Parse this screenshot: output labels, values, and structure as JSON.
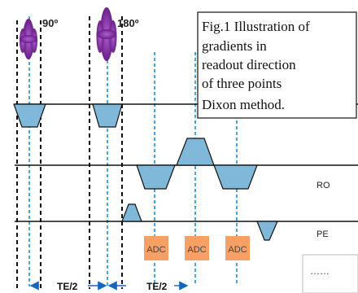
{
  "caption": {
    "lines": [
      "Fig.1 Illustration of",
      "gradients in",
      "readout direction",
      "of three points",
      "Dixon method."
    ]
  },
  "pulses": {
    "p90": "90º",
    "p180": "180º"
  },
  "rows": {
    "ro": "RO",
    "pe": "PE"
  },
  "adc": [
    "ADC",
    "ADC",
    "ADC"
  ],
  "timing": {
    "te1": "TE/2",
    "te2": "TE/2"
  },
  "ellipsis": "……",
  "colors": {
    "pulse": "#7b2f9b",
    "gradient_fill": "#7fb8d8",
    "adc_fill": "#f7a065",
    "timing_line": "#1a8fdc",
    "arrow": "#1565c0"
  }
}
